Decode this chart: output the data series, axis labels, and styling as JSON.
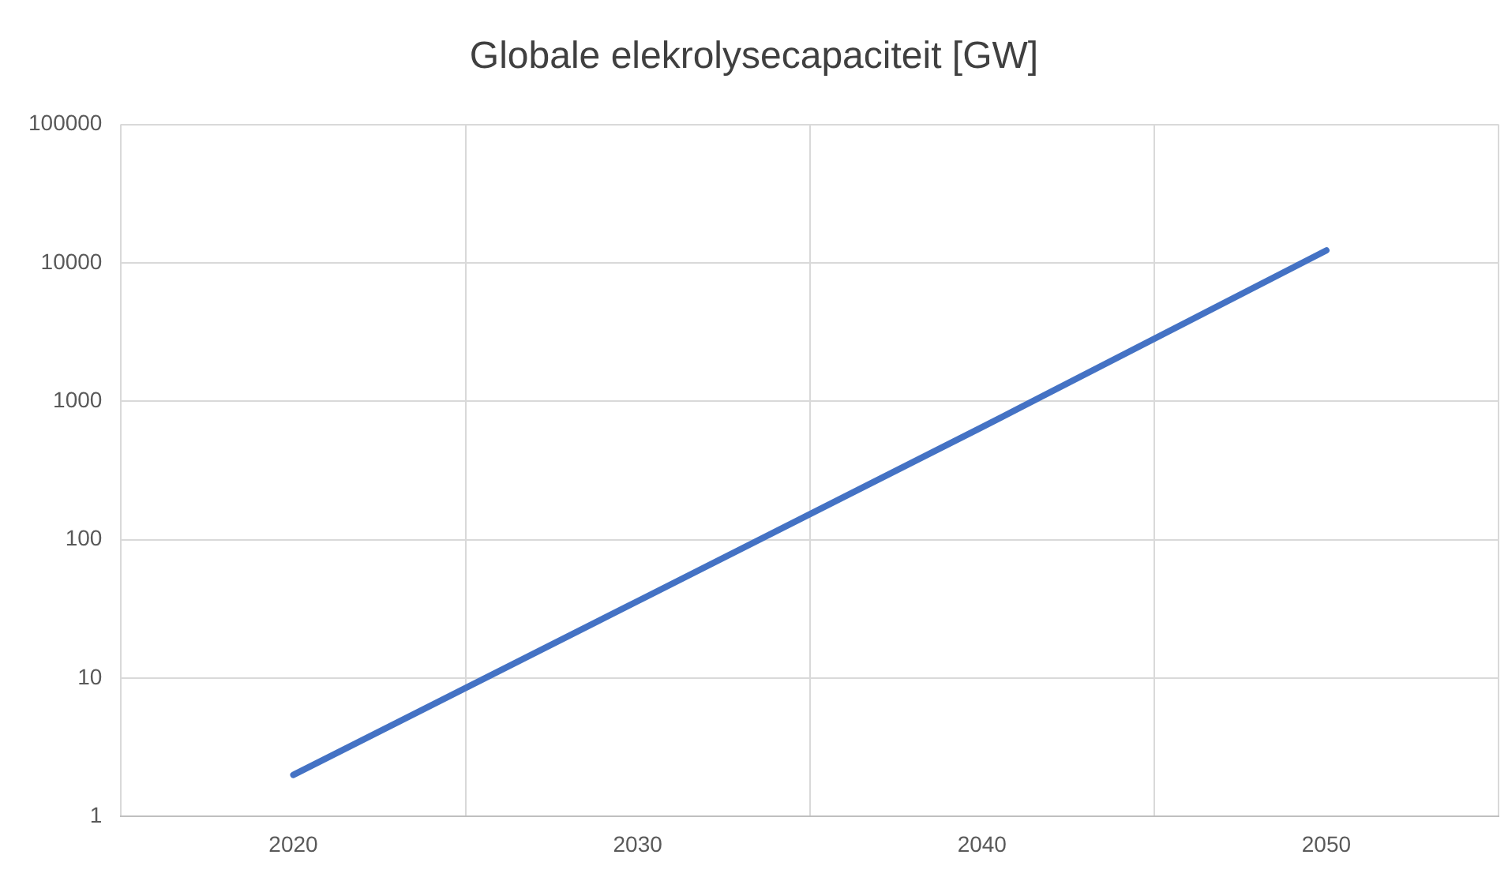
{
  "chart_data": {
    "type": "line",
    "title": "Globale elekrolysecapaciteit [GW]",
    "categories": [
      "2020",
      "2030",
      "2040",
      "2050"
    ],
    "series": [
      {
        "color": "#4472c4",
        "values": [
          2,
          36,
          650,
          12300
        ]
      }
    ],
    "log": true,
    "ylim": [
      1,
      100000
    ],
    "yticks": [
      1,
      10,
      100,
      1000,
      10000,
      100000
    ],
    "grid": true,
    "legend": false,
    "marker": "none",
    "line_style": "solid"
  }
}
